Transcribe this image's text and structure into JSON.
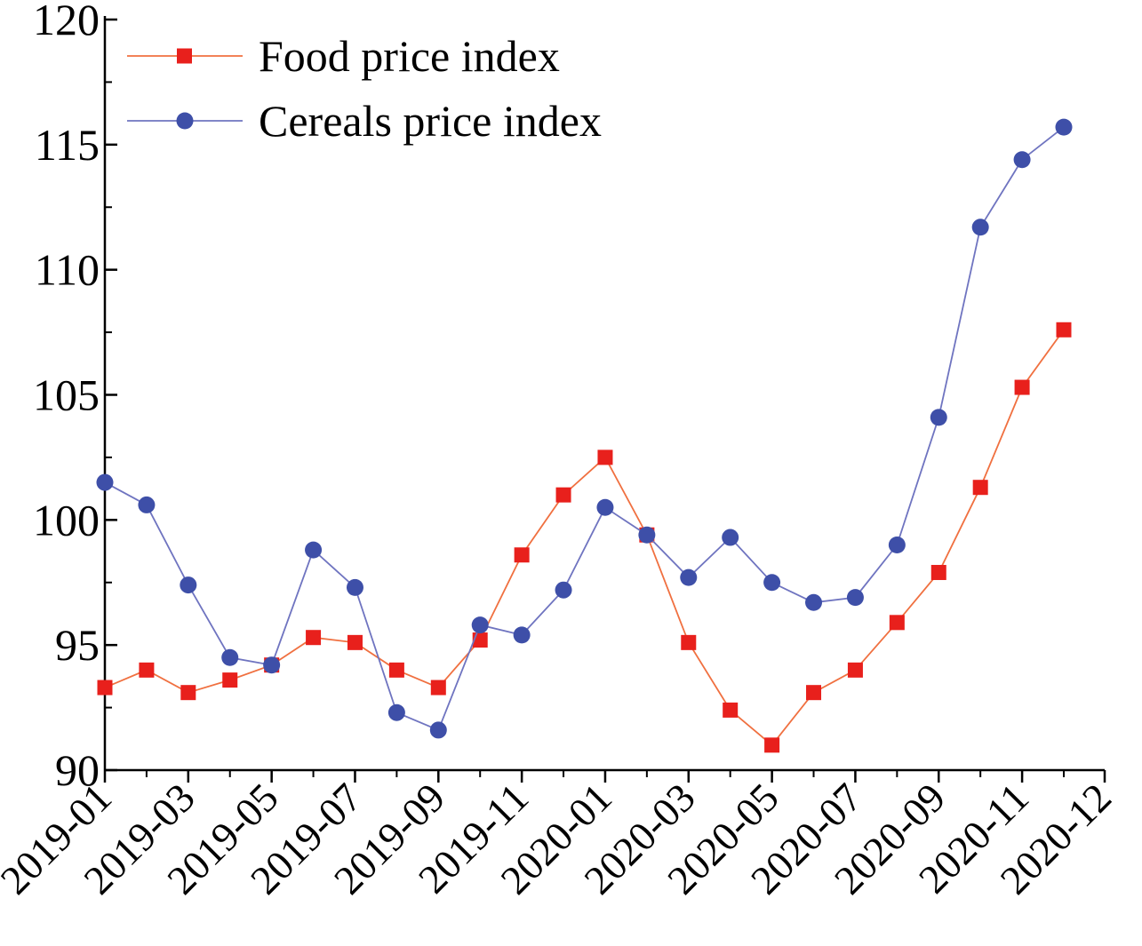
{
  "chart_data": {
    "type": "line",
    "x": [
      "2019-01",
      "2019-02",
      "2019-03",
      "2019-04",
      "2019-05",
      "2019-06",
      "2019-07",
      "2019-08",
      "2019-09",
      "2019-10",
      "2019-11",
      "2019-12",
      "2020-01",
      "2020-02",
      "2020-03",
      "2020-04",
      "2020-05",
      "2020-06",
      "2020-07",
      "2020-08",
      "2020-09",
      "2020-10",
      "2020-11",
      "2020-12"
    ],
    "x_tick_labels": [
      "2019-01",
      "2019-03",
      "2019-05",
      "2019-07",
      "2019-09",
      "2019-11",
      "2020-01",
      "2020-03",
      "2020-05",
      "2020-07",
      "2020-09",
      "2020-11",
      "2020-12"
    ],
    "y_ticks": [
      90,
      95,
      100,
      105,
      110,
      115,
      120
    ],
    "ylim": [
      90,
      120
    ],
    "title": "",
    "xlabel": "",
    "ylabel": "",
    "legend_position": "top-left",
    "grid": false,
    "series": [
      {
        "name": "Food price index",
        "color": "#f07040",
        "marker": "square",
        "marker_color": "#e8201c",
        "values": [
          93.3,
          94.0,
          93.1,
          93.6,
          94.2,
          95.3,
          95.1,
          94.0,
          93.3,
          95.2,
          98.6,
          101.0,
          102.5,
          99.4,
          95.1,
          92.4,
          91.0,
          93.1,
          94.0,
          95.9,
          97.9,
          101.3,
          105.3,
          107.6
        ]
      },
      {
        "name": "Cereals price index",
        "color": "#6f74c0",
        "marker": "circle",
        "marker_color": "#3e4fa8",
        "values": [
          101.5,
          100.6,
          97.4,
          94.5,
          94.2,
          98.8,
          97.3,
          92.3,
          91.6,
          95.8,
          95.4,
          97.2,
          100.5,
          99.4,
          97.7,
          99.3,
          97.5,
          96.7,
          96.9,
          99.0,
          104.1,
          111.7,
          114.4,
          115.7
        ]
      }
    ]
  }
}
